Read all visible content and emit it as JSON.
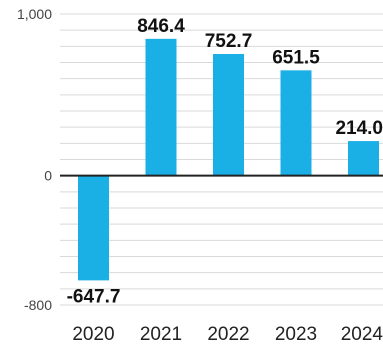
{
  "chart_data": {
    "type": "bar",
    "title": "",
    "xlabel": "",
    "ylabel": "",
    "categories": [
      "2020",
      "2021",
      "2022",
      "2023",
      "2024"
    ],
    "values": [
      -647.7,
      846.4,
      752.7,
      651.5,
      214.0
    ],
    "value_labels": [
      "-647.7",
      "846.4",
      "752.7",
      "651.5",
      "214.0"
    ],
    "ylim": [
      -800,
      1000
    ],
    "y_ticks": [
      1000,
      0,
      -800
    ],
    "y_tick_labels": [
      "1,000",
      "0",
      "-800"
    ],
    "grid": true,
    "legend": "none",
    "colors": {
      "bar": "#1ab0e6",
      "grid": "#d9d9d9",
      "zero_line": "#222222"
    }
  }
}
